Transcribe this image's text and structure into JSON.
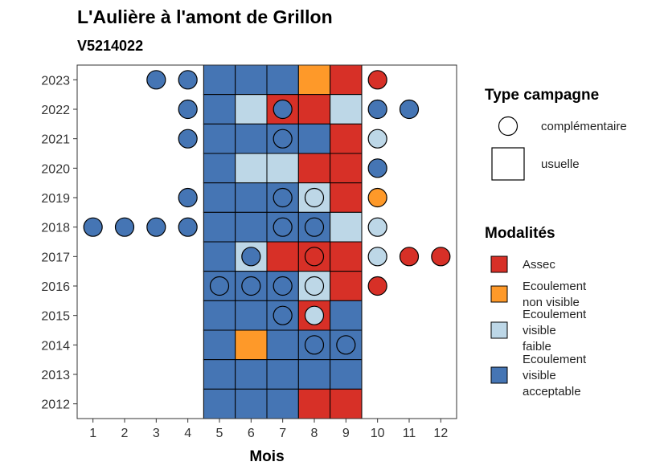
{
  "chart_data": {
    "type": "heatmap",
    "title": "L'Aulière à l'amont de Grillon",
    "subtitle": "V5214022",
    "xlabel": "Mois",
    "ylabel": "",
    "x_ticks": [
      "1",
      "2",
      "3",
      "4",
      "5",
      "6",
      "7",
      "8",
      "9",
      "10",
      "11",
      "12"
    ],
    "y_ticks": [
      "2012",
      "2013",
      "2014",
      "2015",
      "2016",
      "2017",
      "2018",
      "2019",
      "2020",
      "2021",
      "2022",
      "2023"
    ],
    "xlim": [
      0.5,
      12.5
    ],
    "ylim": [
      2011.5,
      2023.5
    ],
    "grid": false,
    "colors": {
      "Assec": "#d73027",
      "Ecoulement non visible": "#fe9929",
      "Ecoulement visible faible": "#bdd7e7",
      "Ecoulement visible acceptable": "#4575b4"
    },
    "legend_type": {
      "title": "Type campagne",
      "entries": [
        {
          "label": "complémentaire",
          "shape": "circle"
        },
        {
          "label": "usuelle",
          "shape": "square"
        }
      ]
    },
    "legend_modalites": {
      "title": "Modalités",
      "entries": [
        {
          "key": "Assec",
          "lines": [
            "Assec"
          ]
        },
        {
          "key": "Ecoulement non visible",
          "lines": [
            "Ecoulement",
            "non visible"
          ]
        },
        {
          "key": "Ecoulement visible faible",
          "lines": [
            "Ecoulement",
            "visible",
            "faible"
          ]
        },
        {
          "key": "Ecoulement visible acceptable",
          "lines": [
            "Ecoulement",
            "visible",
            "acceptable"
          ]
        }
      ]
    },
    "usuelle": [
      {
        "year": 2023,
        "values": [
          "Ecoulement visible acceptable",
          "Ecoulement visible acceptable",
          "Ecoulement visible acceptable",
          "Ecoulement non visible",
          "Assec"
        ]
      },
      {
        "year": 2022,
        "values": [
          "Ecoulement visible acceptable",
          "Ecoulement visible faible",
          "Assec",
          "Assec",
          "Ecoulement visible faible"
        ]
      },
      {
        "year": 2021,
        "values": [
          "Ecoulement visible acceptable",
          "Ecoulement visible acceptable",
          "Ecoulement visible acceptable",
          "Ecoulement visible acceptable",
          "Assec"
        ]
      },
      {
        "year": 2020,
        "values": [
          "Ecoulement visible acceptable",
          "Ecoulement visible faible",
          "Ecoulement visible faible",
          "Assec",
          "Assec"
        ]
      },
      {
        "year": 2019,
        "values": [
          "Ecoulement visible acceptable",
          "Ecoulement visible acceptable",
          "Ecoulement visible acceptable",
          "Ecoulement visible faible",
          "Assec"
        ]
      },
      {
        "year": 2018,
        "values": [
          "Ecoulement visible acceptable",
          "Ecoulement visible acceptable",
          "Ecoulement visible acceptable",
          "Ecoulement visible acceptable",
          "Ecoulement visible faible"
        ]
      },
      {
        "year": 2017,
        "values": [
          "Ecoulement visible acceptable",
          "Ecoulement visible faible",
          "Assec",
          "Assec",
          "Assec"
        ]
      },
      {
        "year": 2016,
        "values": [
          "Ecoulement visible acceptable",
          "Ecoulement visible acceptable",
          "Ecoulement visible acceptable",
          "Ecoulement visible faible",
          "Assec"
        ]
      },
      {
        "year": 2015,
        "values": [
          "Ecoulement visible acceptable",
          "Ecoulement visible acceptable",
          "Ecoulement visible acceptable",
          "Assec",
          "Ecoulement visible acceptable"
        ]
      },
      {
        "year": 2014,
        "values": [
          "Ecoulement visible acceptable",
          "Ecoulement non visible",
          "Ecoulement visible acceptable",
          "Ecoulement visible acceptable",
          "Ecoulement visible acceptable"
        ]
      },
      {
        "year": 2013,
        "values": [
          "Ecoulement visible acceptable",
          "Ecoulement visible acceptable",
          "Ecoulement visible acceptable",
          "Ecoulement visible acceptable",
          "Ecoulement visible acceptable"
        ]
      },
      {
        "year": 2012,
        "values": [
          "Ecoulement visible acceptable",
          "Ecoulement visible acceptable",
          "Ecoulement visible acceptable",
          "Assec",
          "Assec"
        ]
      }
    ],
    "usuelle_months": [
      5,
      6,
      7,
      8,
      9
    ],
    "complementaire": [
      {
        "year": 2023,
        "month": 3,
        "value": "Ecoulement visible acceptable"
      },
      {
        "year": 2023,
        "month": 4,
        "value": "Ecoulement visible acceptable"
      },
      {
        "year": 2023,
        "month": 10,
        "value": "Assec"
      },
      {
        "year": 2022,
        "month": 4,
        "value": "Ecoulement visible acceptable"
      },
      {
        "year": 2022,
        "month": 7,
        "value": "Ecoulement visible acceptable"
      },
      {
        "year": 2022,
        "month": 10,
        "value": "Ecoulement visible acceptable"
      },
      {
        "year": 2022,
        "month": 11,
        "value": "Ecoulement visible acceptable"
      },
      {
        "year": 2021,
        "month": 4,
        "value": "Ecoulement visible acceptable"
      },
      {
        "year": 2021,
        "month": 7,
        "value": "Ecoulement visible acceptable"
      },
      {
        "year": 2021,
        "month": 10,
        "value": "Ecoulement visible faible"
      },
      {
        "year": 2020,
        "month": 10,
        "value": "Ecoulement visible acceptable"
      },
      {
        "year": 2019,
        "month": 4,
        "value": "Ecoulement visible acceptable"
      },
      {
        "year": 2019,
        "month": 7,
        "value": "Ecoulement visible acceptable"
      },
      {
        "year": 2019,
        "month": 8,
        "value": "Ecoulement visible faible"
      },
      {
        "year": 2019,
        "month": 10,
        "value": "Ecoulement non visible"
      },
      {
        "year": 2018,
        "month": 1,
        "value": "Ecoulement visible acceptable"
      },
      {
        "year": 2018,
        "month": 2,
        "value": "Ecoulement visible acceptable"
      },
      {
        "year": 2018,
        "month": 3,
        "value": "Ecoulement visible acceptable"
      },
      {
        "year": 2018,
        "month": 4,
        "value": "Ecoulement visible acceptable"
      },
      {
        "year": 2018,
        "month": 7,
        "value": "Ecoulement visible acceptable"
      },
      {
        "year": 2018,
        "month": 8,
        "value": "Ecoulement visible acceptable"
      },
      {
        "year": 2018,
        "month": 10,
        "value": "Ecoulement visible faible"
      },
      {
        "year": 2017,
        "month": 6,
        "value": "Ecoulement visible acceptable"
      },
      {
        "year": 2017,
        "month": 8,
        "value": "Assec"
      },
      {
        "year": 2017,
        "month": 10,
        "value": "Ecoulement visible faible"
      },
      {
        "year": 2017,
        "month": 11,
        "value": "Assec"
      },
      {
        "year": 2017,
        "month": 12,
        "value": "Assec"
      },
      {
        "year": 2016,
        "month": 5,
        "value": "Ecoulement visible acceptable"
      },
      {
        "year": 2016,
        "month": 6,
        "value": "Ecoulement visible acceptable"
      },
      {
        "year": 2016,
        "month": 7,
        "value": "Ecoulement visible acceptable"
      },
      {
        "year": 2016,
        "month": 8,
        "value": "Ecoulement visible faible"
      },
      {
        "year": 2016,
        "month": 10,
        "value": "Assec"
      },
      {
        "year": 2015,
        "month": 7,
        "value": "Ecoulement visible acceptable"
      },
      {
        "year": 2015,
        "month": 8,
        "value": "Ecoulement visible faible"
      },
      {
        "year": 2014,
        "month": 8,
        "value": "Ecoulement visible acceptable"
      },
      {
        "year": 2014,
        "month": 9,
        "value": "Ecoulement visible acceptable"
      }
    ]
  }
}
